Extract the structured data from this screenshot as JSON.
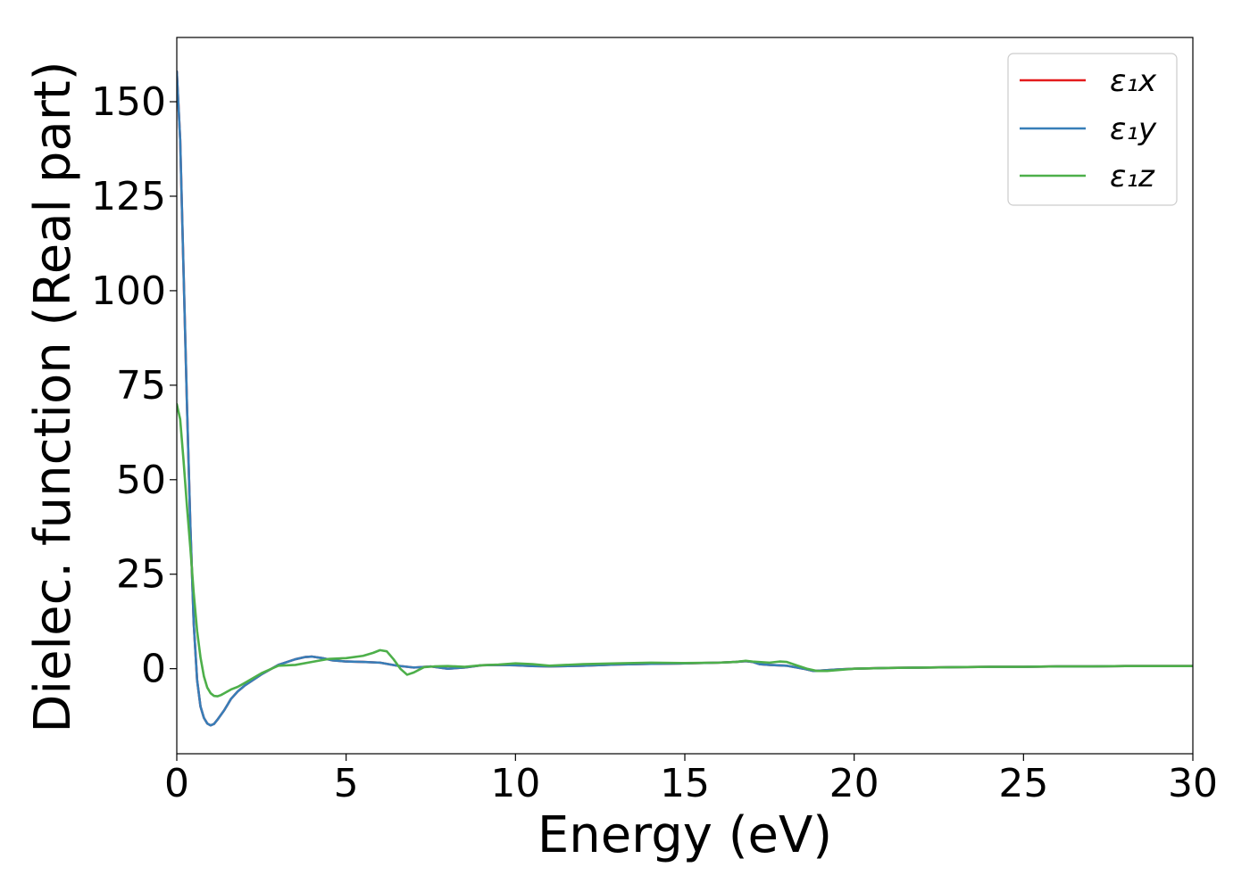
{
  "chart_data": {
    "type": "line",
    "xlabel": "Energy (eV)",
    "ylabel": "Dielec. function (Real part)",
    "xlim": [
      0,
      30
    ],
    "ylim": [
      -22.5,
      167
    ],
    "xticks": [
      0,
      5,
      10,
      15,
      20,
      25,
      30
    ],
    "yticks": [
      0,
      25,
      50,
      75,
      100,
      125,
      150
    ],
    "grid": false,
    "legend_position": "top-right",
    "series": [
      {
        "name": "ε₁x",
        "color": "#e41a1c",
        "x": [
          0.0,
          0.1,
          0.2,
          0.3,
          0.4,
          0.5,
          0.6,
          0.7,
          0.8,
          0.9,
          1.0,
          1.1,
          1.2,
          1.4,
          1.6,
          1.8,
          2.0,
          2.5,
          3.0,
          3.5,
          3.8,
          4.0,
          4.3,
          4.6,
          5.0,
          5.5,
          6.0,
          6.5,
          7.0,
          7.5,
          8.0,
          8.5,
          9.0,
          9.5,
          10.0,
          10.5,
          11.0,
          12.0,
          13.0,
          14.0,
          15.0,
          16.0,
          16.5,
          16.8,
          17.0,
          17.2,
          17.5,
          18.0,
          18.5,
          18.8,
          19.0,
          19.5,
          20.0,
          21.0,
          22.0,
          23.0,
          24.0,
          25.0,
          26.0,
          27.0,
          28.0,
          29.0,
          30.0
        ],
        "values": [
          158,
          140,
          105,
          70,
          38,
          12,
          -3,
          -10,
          -13,
          -14.5,
          -15,
          -14.6,
          -13.5,
          -11,
          -8,
          -6,
          -4.5,
          -1.5,
          1.0,
          2.5,
          3.1,
          3.2,
          2.8,
          2.2,
          1.9,
          1.8,
          1.6,
          0.8,
          0.3,
          0.6,
          0.0,
          0.3,
          0.9,
          1.0,
          0.9,
          0.7,
          0.6,
          0.8,
          1.1,
          1.3,
          1.4,
          1.6,
          1.8,
          2.0,
          1.8,
          1.2,
          1.0,
          0.8,
          0.0,
          -0.6,
          -0.5,
          -0.2,
          0.0,
          0.2,
          0.3,
          0.4,
          0.5,
          0.5,
          0.6,
          0.6,
          0.7,
          0.7,
          0.7
        ]
      },
      {
        "name": "ε₁y",
        "color": "#377eb8",
        "x": [
          0.0,
          0.1,
          0.2,
          0.3,
          0.4,
          0.5,
          0.6,
          0.7,
          0.8,
          0.9,
          1.0,
          1.1,
          1.2,
          1.4,
          1.6,
          1.8,
          2.0,
          2.5,
          3.0,
          3.5,
          3.8,
          4.0,
          4.3,
          4.6,
          5.0,
          5.5,
          6.0,
          6.5,
          7.0,
          7.5,
          8.0,
          8.5,
          9.0,
          9.5,
          10.0,
          10.5,
          11.0,
          12.0,
          13.0,
          14.0,
          15.0,
          16.0,
          16.5,
          16.8,
          17.0,
          17.2,
          17.5,
          18.0,
          18.5,
          18.8,
          19.0,
          19.5,
          20.0,
          21.0,
          22.0,
          23.0,
          24.0,
          25.0,
          26.0,
          27.0,
          28.0,
          29.0,
          30.0
        ],
        "values": [
          158,
          140,
          105,
          70,
          38,
          12,
          -3,
          -10,
          -13,
          -14.5,
          -15,
          -14.6,
          -13.5,
          -11,
          -8,
          -6,
          -4.5,
          -1.5,
          1.0,
          2.5,
          3.1,
          3.2,
          2.8,
          2.2,
          1.9,
          1.8,
          1.6,
          0.8,
          0.3,
          0.6,
          0.0,
          0.3,
          0.9,
          1.0,
          0.9,
          0.7,
          0.6,
          0.8,
          1.1,
          1.3,
          1.4,
          1.6,
          1.8,
          2.0,
          1.8,
          1.2,
          1.0,
          0.8,
          0.0,
          -0.6,
          -0.5,
          -0.2,
          0.0,
          0.2,
          0.3,
          0.4,
          0.5,
          0.5,
          0.6,
          0.6,
          0.7,
          0.7,
          0.7
        ]
      },
      {
        "name": "ε₁z",
        "color": "#4daf4a",
        "x": [
          0.0,
          0.1,
          0.2,
          0.3,
          0.4,
          0.5,
          0.6,
          0.7,
          0.8,
          0.9,
          1.0,
          1.1,
          1.2,
          1.3,
          1.4,
          1.6,
          1.8,
          2.0,
          2.5,
          3.0,
          3.5,
          4.0,
          4.5,
          5.0,
          5.5,
          5.8,
          6.0,
          6.2,
          6.4,
          6.6,
          6.8,
          7.0,
          7.3,
          7.6,
          8.0,
          8.5,
          9.0,
          9.5,
          10.0,
          10.5,
          11.0,
          12.0,
          13.0,
          14.0,
          15.0,
          16.0,
          16.5,
          16.8,
          17.0,
          17.5,
          17.8,
          18.0,
          18.3,
          18.6,
          18.9,
          19.2,
          19.6,
          20.0,
          21.0,
          22.0,
          23.0,
          24.0,
          25.0,
          26.0,
          27.0,
          28.0,
          29.0,
          30.0
        ],
        "values": [
          70,
          66,
          55,
          43,
          32,
          20,
          10,
          3,
          -2,
          -5,
          -6.5,
          -7.2,
          -7.3,
          -7.0,
          -6.5,
          -5.5,
          -4.8,
          -3.8,
          -1.2,
          0.8,
          1.0,
          1.8,
          2.6,
          2.8,
          3.4,
          4.2,
          4.9,
          4.6,
          2.5,
          0.0,
          -1.6,
          -1.0,
          0.4,
          0.6,
          0.7,
          0.5,
          0.9,
          1.1,
          1.4,
          1.2,
          0.8,
          1.2,
          1.4,
          1.6,
          1.5,
          1.6,
          1.8,
          2.1,
          1.9,
          1.6,
          1.9,
          1.8,
          0.9,
          0.0,
          -0.6,
          -0.6,
          -0.3,
          0.0,
          0.2,
          0.3,
          0.4,
          0.5,
          0.5,
          0.6,
          0.6,
          0.7,
          0.7,
          0.7
        ]
      }
    ]
  }
}
